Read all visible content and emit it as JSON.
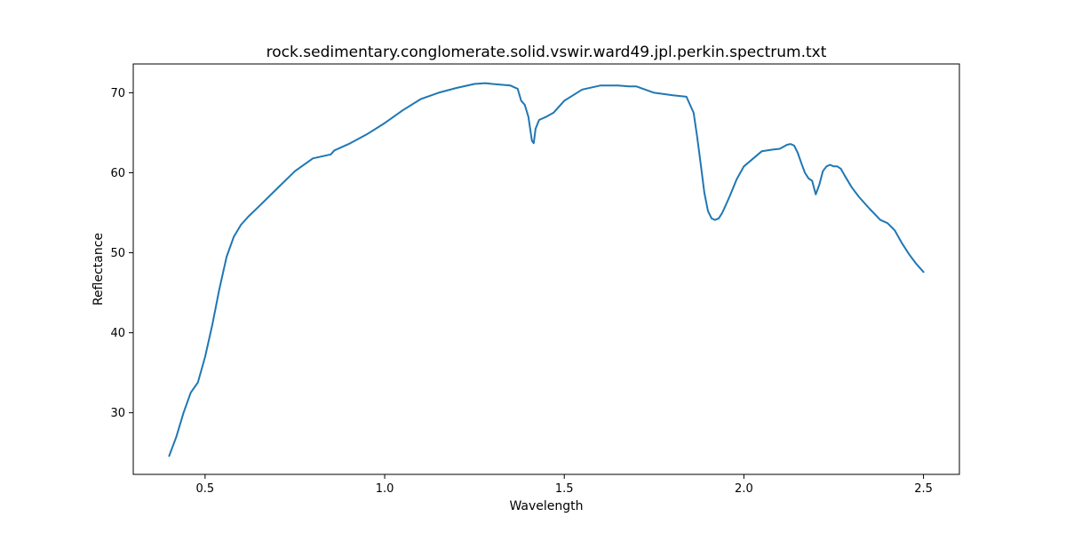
{
  "chart_data": {
    "type": "line",
    "title": "rock.sedimentary.conglomerate.solid.vswir.ward49.jpl.perkin.spectrum.txt",
    "xlabel": "Wavelength",
    "ylabel": "Reflectance",
    "xlim": [
      0.3,
      2.6
    ],
    "ylim": [
      22.3,
      73.6
    ],
    "xticks": [
      "0.5",
      "1.0",
      "1.5",
      "2.0",
      "2.5"
    ],
    "yticks": [
      "30",
      "40",
      "50",
      "60",
      "70"
    ],
    "grid": false,
    "color": "#1f77b4",
    "series": [
      {
        "x": [
          0.4,
          0.42,
          0.44,
          0.46,
          0.48,
          0.5,
          0.52,
          0.54,
          0.56,
          0.58,
          0.6,
          0.62,
          0.65,
          0.7,
          0.75,
          0.8,
          0.85,
          0.86,
          0.9,
          0.95,
          1.0,
          1.05,
          1.1,
          1.15,
          1.2,
          1.25,
          1.28,
          1.3,
          1.35,
          1.37,
          1.38,
          1.39,
          1.4,
          1.41,
          1.415,
          1.42,
          1.43,
          1.45,
          1.47,
          1.5,
          1.55,
          1.6,
          1.65,
          1.68,
          1.69,
          1.7,
          1.75,
          1.8,
          1.84,
          1.86,
          1.87,
          1.88,
          1.89,
          1.9,
          1.91,
          1.92,
          1.93,
          1.94,
          1.96,
          1.98,
          2.0,
          2.05,
          2.08,
          2.1,
          2.12,
          2.13,
          2.14,
          2.15,
          2.16,
          2.17,
          2.18,
          2.19,
          2.2,
          2.21,
          2.22,
          2.23,
          2.24,
          2.25,
          2.26,
          2.27,
          2.28,
          2.3,
          2.32,
          2.35,
          2.38,
          2.4,
          2.42,
          2.44,
          2.46,
          2.48,
          2.5
        ],
        "y": [
          24.6,
          27.0,
          30.0,
          32.5,
          33.8,
          37.0,
          41.0,
          45.5,
          49.5,
          52.0,
          53.5,
          54.5,
          55.8,
          58.0,
          60.2,
          61.8,
          62.3,
          62.8,
          63.6,
          64.8,
          66.2,
          67.8,
          69.2,
          70.0,
          70.6,
          71.1,
          71.2,
          71.1,
          70.9,
          70.5,
          69.0,
          68.5,
          67.0,
          64.0,
          63.7,
          65.5,
          66.6,
          67.0,
          67.5,
          69.0,
          70.4,
          70.9,
          70.9,
          70.8,
          70.8,
          70.8,
          70.0,
          69.7,
          69.5,
          67.5,
          64.5,
          61.0,
          57.5,
          55.2,
          54.3,
          54.1,
          54.3,
          55.0,
          57.0,
          59.2,
          60.8,
          62.7,
          62.9,
          63.0,
          63.5,
          63.6,
          63.4,
          62.5,
          61.2,
          60.0,
          59.3,
          59.0,
          57.3,
          58.5,
          60.2,
          60.8,
          61.0,
          60.8,
          60.8,
          60.5,
          59.7,
          58.2,
          57.0,
          55.5,
          54.1,
          53.7,
          52.8,
          51.2,
          49.8,
          48.6,
          47.6
        ]
      }
    ]
  }
}
